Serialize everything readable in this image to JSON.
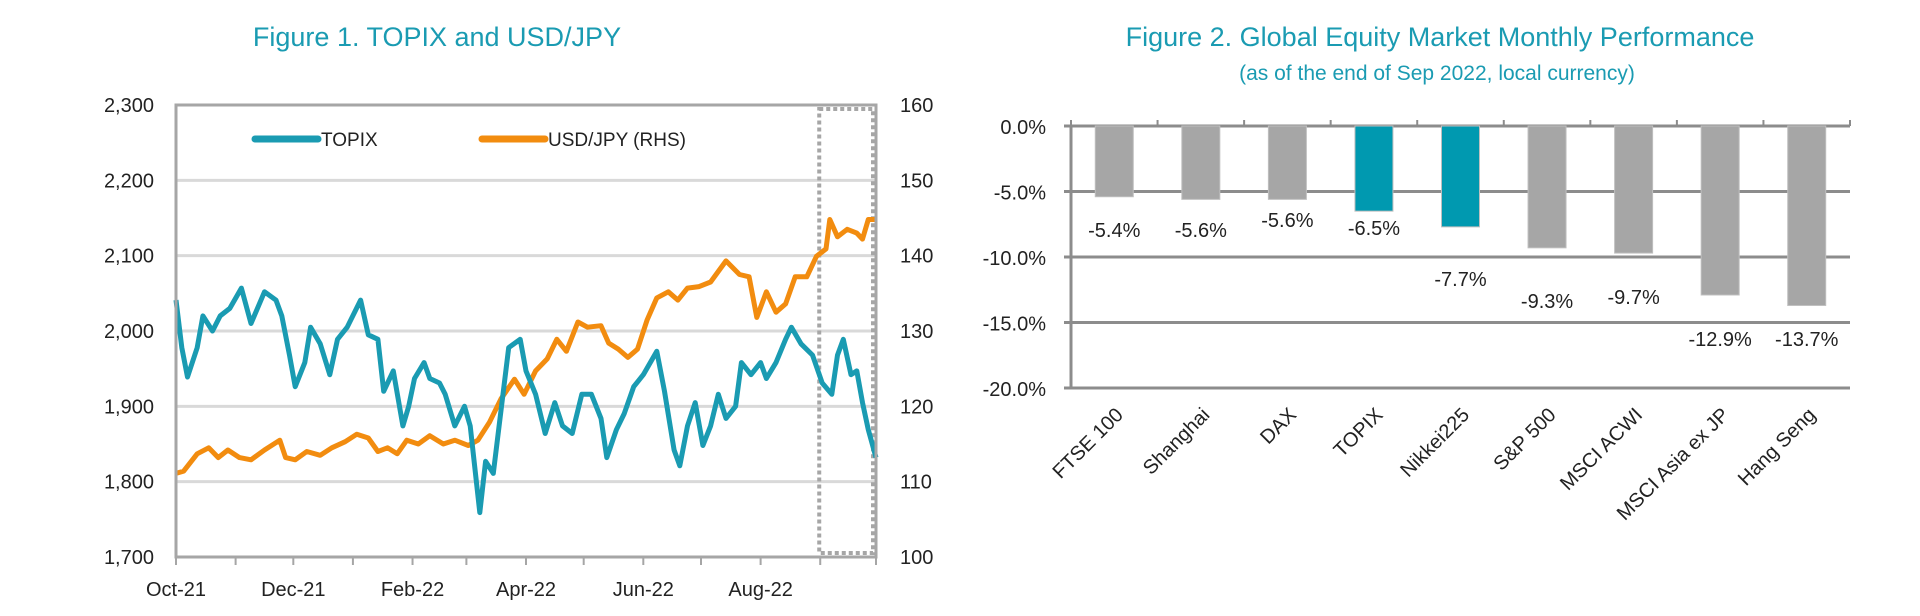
{
  "colors": {
    "title": "#1a9bb2",
    "topix": "#1a9bb2",
    "usdjpy": "#f28c0f",
    "bar_default": "#a6a6a6",
    "bar_highlight": "#0099b0",
    "grid": "#d9d9d9",
    "axis": "#a6a6a6"
  },
  "chart_data": [
    {
      "type": "line",
      "title": "Figure 1. TOPIX and USD/JPY",
      "x_type": "date",
      "xlim": [
        "2021-10-01",
        "2022-09-30"
      ],
      "x_tick_labels": [
        "Oct-21",
        "Dec-21",
        "Feb-22",
        "Apr-22",
        "Jun-22",
        "Aug-22"
      ],
      "y_left": {
        "lim": [
          1700,
          2300
        ],
        "ticks": [
          "1,700",
          "1,800",
          "1,900",
          "2,000",
          "2,100",
          "2,200",
          "2,300"
        ]
      },
      "y_right": {
        "lim": [
          100,
          160
        ],
        "ticks": [
          "100",
          "110",
          "120",
          "130",
          "140",
          "150",
          "160"
        ]
      },
      "grid": true,
      "legend": "top",
      "highlight_region": {
        "from": "2022-09-01",
        "to": "2022-09-30",
        "style": "dotted box"
      },
      "series": [
        {
          "name": "TOPIX",
          "axis": "left",
          "points": [
            [
              "2021-10-01",
              2041
            ],
            [
              "2021-10-04",
              1978
            ],
            [
              "2021-10-07",
              1939
            ],
            [
              "2021-10-12",
              1978
            ],
            [
              "2021-10-15",
              2020
            ],
            [
              "2021-10-20",
              2000
            ],
            [
              "2021-10-24",
              2020
            ],
            [
              "2021-10-29",
              2030
            ],
            [
              "2021-11-04",
              2057
            ],
            [
              "2021-11-09",
              2010
            ],
            [
              "2021-11-16",
              2052
            ],
            [
              "2021-11-22",
              2041
            ],
            [
              "2021-11-25",
              2020
            ],
            [
              "2021-11-29",
              1968
            ],
            [
              "2021-12-02",
              1926
            ],
            [
              "2021-12-07",
              1958
            ],
            [
              "2021-12-10",
              2005
            ],
            [
              "2021-12-15",
              1983
            ],
            [
              "2021-12-20",
              1942
            ],
            [
              "2021-12-24",
              1989
            ],
            [
              "2021-12-29",
              2005
            ],
            [
              "2022-01-05",
              2041
            ],
            [
              "2022-01-09",
              1995
            ],
            [
              "2022-01-14",
              1989
            ],
            [
              "2022-01-17",
              1920
            ],
            [
              "2022-01-22",
              1947
            ],
            [
              "2022-01-27",
              1874
            ],
            [
              "2022-01-30",
              1900
            ],
            [
              "2022-02-02",
              1937
            ],
            [
              "2022-02-07",
              1958
            ],
            [
              "2022-02-10",
              1937
            ],
            [
              "2022-02-15",
              1931
            ],
            [
              "2022-02-18",
              1916
            ],
            [
              "2022-02-23",
              1874
            ],
            [
              "2022-02-28",
              1900
            ],
            [
              "2022-03-03",
              1874
            ],
            [
              "2022-03-08",
              1759
            ],
            [
              "2022-03-11",
              1827
            ],
            [
              "2022-03-15",
              1811
            ],
            [
              "2022-03-18",
              1874
            ],
            [
              "2022-03-23",
              1978
            ],
            [
              "2022-03-29",
              1989
            ],
            [
              "2022-04-01",
              1947
            ],
            [
              "2022-04-06",
              1916
            ],
            [
              "2022-04-11",
              1864
            ],
            [
              "2022-04-16",
              1905
            ],
            [
              "2022-04-20",
              1874
            ],
            [
              "2022-04-25",
              1864
            ],
            [
              "2022-04-30",
              1916
            ],
            [
              "2022-05-05",
              1916
            ],
            [
              "2022-05-10",
              1884
            ],
            [
              "2022-05-13",
              1832
            ],
            [
              "2022-05-18",
              1869
            ],
            [
              "2022-05-22",
              1890
            ],
            [
              "2022-05-27",
              1926
            ],
            [
              "2022-06-01",
              1942
            ],
            [
              "2022-06-08",
              1973
            ],
            [
              "2022-06-12",
              1920
            ],
            [
              "2022-06-17",
              1842
            ],
            [
              "2022-06-20",
              1821
            ],
            [
              "2022-06-24",
              1874
            ],
            [
              "2022-06-28",
              1905
            ],
            [
              "2022-07-02",
              1848
            ],
            [
              "2022-07-06",
              1874
            ],
            [
              "2022-07-10",
              1916
            ],
            [
              "2022-07-14",
              1884
            ],
            [
              "2022-07-19",
              1900
            ],
            [
              "2022-07-22",
              1958
            ],
            [
              "2022-07-27",
              1942
            ],
            [
              "2022-08-01",
              1958
            ],
            [
              "2022-08-04",
              1937
            ],
            [
              "2022-08-09",
              1958
            ],
            [
              "2022-08-14",
              1989
            ],
            [
              "2022-08-17",
              2005
            ],
            [
              "2022-08-22",
              1983
            ],
            [
              "2022-08-28",
              1968
            ],
            [
              "2022-09-02",
              1931
            ],
            [
              "2022-09-07",
              1916
            ],
            [
              "2022-09-10",
              1968
            ],
            [
              "2022-09-13",
              1989
            ],
            [
              "2022-09-17",
              1942
            ],
            [
              "2022-09-20",
              1947
            ],
            [
              "2022-09-23",
              1905
            ],
            [
              "2022-09-26",
              1869
            ],
            [
              "2022-09-30",
              1832
            ]
          ]
        },
        {
          "name": "USD/JPY (RHS)",
          "axis": "right",
          "points": [
            [
              "2021-10-01",
              111.1
            ],
            [
              "2021-10-05",
              111.4
            ],
            [
              "2021-10-12",
              113.7
            ],
            [
              "2021-10-18",
              114.5
            ],
            [
              "2021-10-23",
              113.2
            ],
            [
              "2021-10-28",
              114.2
            ],
            [
              "2021-11-03",
              113.2
            ],
            [
              "2021-11-09",
              112.9
            ],
            [
              "2021-11-16",
              114.2
            ],
            [
              "2021-11-24",
              115.5
            ],
            [
              "2021-11-27",
              113.2
            ],
            [
              "2021-12-02",
              112.9
            ],
            [
              "2021-12-08",
              114.0
            ],
            [
              "2021-12-15",
              113.5
            ],
            [
              "2021-12-21",
              114.5
            ],
            [
              "2021-12-28",
              115.3
            ],
            [
              "2022-01-03",
              116.3
            ],
            [
              "2022-01-09",
              115.8
            ],
            [
              "2022-01-14",
              114.0
            ],
            [
              "2022-01-19",
              114.5
            ],
            [
              "2022-01-24",
              113.7
            ],
            [
              "2022-01-29",
              115.5
            ],
            [
              "2022-02-04",
              115.0
            ],
            [
              "2022-02-10",
              116.1
            ],
            [
              "2022-02-17",
              115.0
            ],
            [
              "2022-02-23",
              115.5
            ],
            [
              "2022-03-02",
              114.8
            ],
            [
              "2022-03-07",
              115.5
            ],
            [
              "2022-03-13",
              117.9
            ],
            [
              "2022-03-19",
              121.0
            ],
            [
              "2022-03-26",
              123.6
            ],
            [
              "2022-03-31",
              121.6
            ],
            [
              "2022-04-06",
              124.7
            ],
            [
              "2022-04-12",
              126.3
            ],
            [
              "2022-04-17",
              128.9
            ],
            [
              "2022-04-22",
              127.3
            ],
            [
              "2022-04-28",
              131.2
            ],
            [
              "2022-05-03",
              130.5
            ],
            [
              "2022-05-10",
              130.7
            ],
            [
              "2022-05-14",
              128.4
            ],
            [
              "2022-05-19",
              127.6
            ],
            [
              "2022-05-24",
              126.5
            ],
            [
              "2022-05-29",
              127.6
            ],
            [
              "2022-06-03",
              131.5
            ],
            [
              "2022-06-08",
              134.4
            ],
            [
              "2022-06-14",
              135.2
            ],
            [
              "2022-06-19",
              134.1
            ],
            [
              "2022-06-24",
              135.7
            ],
            [
              "2022-06-30",
              135.9
            ],
            [
              "2022-07-06",
              136.5
            ],
            [
              "2022-07-14",
              139.3
            ],
            [
              "2022-07-21",
              137.5
            ],
            [
              "2022-07-26",
              137.2
            ],
            [
              "2022-07-30",
              131.8
            ],
            [
              "2022-08-04",
              135.2
            ],
            [
              "2022-08-09",
              132.5
            ],
            [
              "2022-08-14",
              133.6
            ],
            [
              "2022-08-19",
              137.2
            ],
            [
              "2022-08-25",
              137.2
            ],
            [
              "2022-08-30",
              139.9
            ],
            [
              "2022-09-04",
              140.9
            ],
            [
              "2022-09-06",
              144.8
            ],
            [
              "2022-09-10",
              142.5
            ],
            [
              "2022-09-15",
              143.5
            ],
            [
              "2022-09-20",
              143.0
            ],
            [
              "2022-09-23",
              142.2
            ],
            [
              "2022-09-26",
              144.8
            ],
            [
              "2022-09-30",
              144.8
            ]
          ]
        }
      ]
    },
    {
      "type": "bar",
      "title": "Figure 2. Global Equity Market Monthly Performance",
      "subtitle": "(as of the end of Sep 2022, local currency)",
      "categories": [
        "FTSE 100",
        "Shanghai",
        "DAX",
        "TOPIX",
        "Nikkei225",
        "S&P 500",
        "MSCI ACWI",
        "MSCI Asia ex JP",
        "Hang Seng"
      ],
      "values": [
        -5.4,
        -5.6,
        -5.6,
        -6.5,
        -7.7,
        -9.3,
        -9.7,
        -12.9,
        -13.7
      ],
      "data_labels": [
        "-5.4%",
        "-5.6%",
        "-5.6%",
        "-6.5%",
        "-7.7%",
        "-9.3%",
        "-9.7%",
        "-12.9%",
        "-13.7%"
      ],
      "highlighted": [
        "TOPIX",
        "Nikkei225"
      ],
      "ylim": [
        -20,
        0
      ],
      "y_ticks": [
        "0.0%",
        "-5.0%",
        "-10.0%",
        "-15.0%",
        "-20.0%"
      ],
      "grid": true
    }
  ]
}
